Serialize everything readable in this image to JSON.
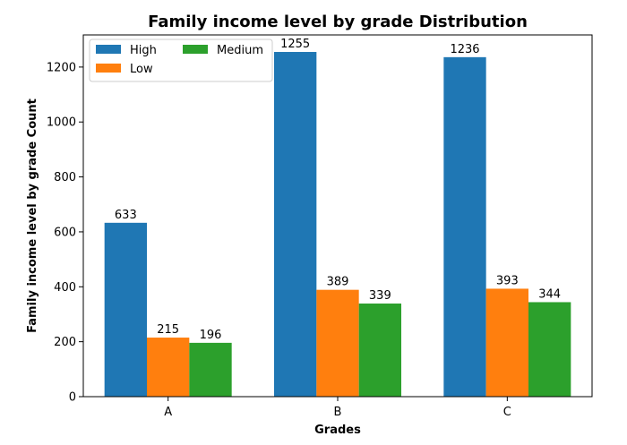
{
  "chart_data": {
    "type": "bar",
    "title": "Family income level by grade Distribution",
    "xlabel": "Grades",
    "ylabel": "Family income level by grade Count",
    "categories": [
      "A",
      "B",
      "C"
    ],
    "series": [
      {
        "name": "High",
        "values": [
          633,
          1255,
          1236
        ],
        "color": "#1f77b4"
      },
      {
        "name": "Low",
        "values": [
          215,
          389,
          393
        ],
        "color": "#ff7f0e"
      },
      {
        "name": "Medium",
        "values": [
          196,
          339,
          344
        ],
        "color": "#2ca02c"
      }
    ],
    "ylim": [
      0,
      1317
    ],
    "yticks": [
      0,
      200,
      400,
      600,
      800,
      1000,
      1200
    ],
    "legend_position": "top-left",
    "grid": false
  }
}
